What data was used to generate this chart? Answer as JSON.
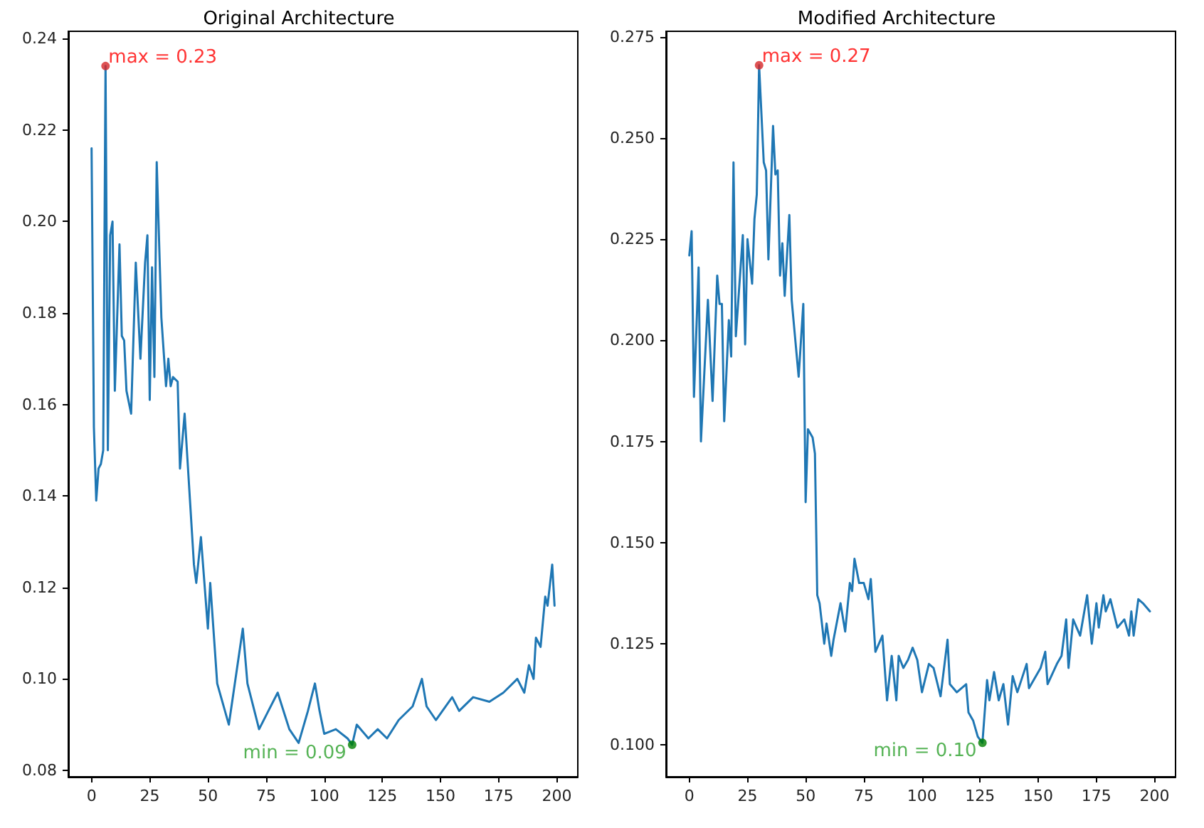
{
  "chart_data": [
    {
      "type": "line",
      "title": "Original Architecture",
      "grid": false,
      "marker": "none",
      "line_style": "solid",
      "xlim": [
        -10,
        209
      ],
      "xticks": [
        0,
        25,
        50,
        75,
        100,
        125,
        150,
        175,
        200
      ],
      "ylim": [
        0.0786,
        0.2416
      ],
      "yticks": [
        {
          "value": 0.08,
          "label": "0.08"
        },
        {
          "value": 0.1,
          "label": "0.10"
        },
        {
          "value": 0.12,
          "label": "0.12"
        },
        {
          "value": 0.14,
          "label": "0.14"
        },
        {
          "value": 0.16,
          "label": "0.16"
        },
        {
          "value": 0.18,
          "label": "0.18"
        },
        {
          "value": 0.2,
          "label": "0.20"
        },
        {
          "value": 0.22,
          "label": "0.22"
        },
        {
          "value": 0.24,
          "label": "0.24"
        }
      ],
      "annotations": [
        {
          "text": "max = 0.23",
          "x": 6,
          "y": 0.234
        },
        {
          "text": "min = 0.09",
          "x": 112,
          "y": 0.0856
        }
      ],
      "series": [
        {
          "color": "#1f77b4",
          "x": [
            0,
            1,
            2,
            3,
            4,
            5,
            6,
            7,
            8,
            9,
            10,
            12,
            13,
            14,
            15,
            17,
            19,
            21,
            23,
            24,
            25,
            26,
            27,
            28,
            30,
            32,
            33,
            34,
            35,
            37,
            38,
            40,
            44,
            45,
            47,
            50,
            51,
            54,
            59,
            61,
            65,
            67,
            72,
            76,
            80,
            85,
            89,
            93,
            96,
            98,
            100,
            105,
            110,
            112,
            114,
            119,
            123,
            127,
            132,
            138,
            142,
            144,
            148,
            155,
            158,
            164,
            171,
            177,
            183,
            186,
            188,
            190,
            191,
            193,
            195,
            196,
            198,
            199
          ],
          "values": [
            0.216,
            0.155,
            0.139,
            0.146,
            0.147,
            0.15,
            0.234,
            0.15,
            0.197,
            0.2,
            0.163,
            0.195,
            0.175,
            0.174,
            0.163,
            0.158,
            0.191,
            0.17,
            0.191,
            0.197,
            0.161,
            0.19,
            0.166,
            0.213,
            0.179,
            0.164,
            0.17,
            0.164,
            0.166,
            0.165,
            0.146,
            0.158,
            0.125,
            0.121,
            0.131,
            0.111,
            0.121,
            0.099,
            0.09,
            0.097,
            0.111,
            0.099,
            0.089,
            0.093,
            0.097,
            0.089,
            0.086,
            0.093,
            0.099,
            0.093,
            0.088,
            0.089,
            0.087,
            0.0856,
            0.09,
            0.087,
            0.089,
            0.087,
            0.091,
            0.094,
            0.1,
            0.094,
            0.091,
            0.096,
            0.093,
            0.096,
            0.095,
            0.097,
            0.1,
            0.097,
            0.103,
            0.1,
            0.109,
            0.107,
            0.118,
            0.116,
            0.125,
            0.116
          ]
        }
      ]
    },
    {
      "type": "line",
      "title": "Modified Architecture",
      "grid": false,
      "marker": "none",
      "line_style": "solid",
      "xlim": [
        -10,
        209
      ],
      "xticks": [
        0,
        25,
        50,
        75,
        100,
        125,
        150,
        175,
        200
      ],
      "ylim": [
        0.0921,
        0.2764
      ],
      "yticks": [
        {
          "value": 0.1,
          "label": "0.100"
        },
        {
          "value": 0.125,
          "label": "0.125"
        },
        {
          "value": 0.15,
          "label": "0.150"
        },
        {
          "value": 0.175,
          "label": "0.175"
        },
        {
          "value": 0.2,
          "label": "0.200"
        },
        {
          "value": 0.225,
          "label": "0.225"
        },
        {
          "value": 0.25,
          "label": "0.250"
        },
        {
          "value": 0.275,
          "label": "0.275"
        }
      ],
      "annotations": [
        {
          "text": "max = 0.27",
          "x": 30,
          "y": 0.268
        },
        {
          "text": "min = 0.10",
          "x": 126,
          "y": 0.1005
        }
      ],
      "series": [
        {
          "color": "#1f77b4",
          "x": [
            0,
            1,
            2,
            4,
            5,
            8,
            10,
            12,
            13,
            14,
            15,
            17,
            18,
            19,
            20,
            23,
            24,
            25,
            27,
            28,
            29,
            30,
            32,
            33,
            34,
            36,
            37,
            38,
            39,
            40,
            41,
            43,
            44,
            47,
            49,
            50,
            51,
            53,
            54,
            55,
            56,
            58,
            59,
            61,
            62,
            65,
            67,
            69,
            70,
            71,
            73,
            75,
            77,
            78,
            80,
            83,
            85,
            87,
            89,
            90,
            92,
            94,
            96,
            98,
            100,
            103,
            105,
            108,
            111,
            112,
            115,
            119,
            120,
            122,
            124,
            126,
            128,
            129,
            131,
            133,
            135,
            137,
            139,
            141,
            145,
            146,
            151,
            153,
            154,
            158,
            160,
            162,
            163,
            165,
            168,
            171,
            173,
            175,
            176,
            178,
            179,
            181,
            184,
            187,
            189,
            190,
            191,
            193,
            195,
            198
          ],
          "values": [
            0.221,
            0.227,
            0.186,
            0.218,
            0.175,
            0.21,
            0.185,
            0.216,
            0.209,
            0.209,
            0.18,
            0.205,
            0.196,
            0.244,
            0.201,
            0.226,
            0.199,
            0.225,
            0.214,
            0.23,
            0.236,
            0.268,
            0.244,
            0.242,
            0.22,
            0.253,
            0.241,
            0.242,
            0.216,
            0.224,
            0.211,
            0.231,
            0.21,
            0.191,
            0.209,
            0.16,
            0.178,
            0.176,
            0.172,
            0.137,
            0.135,
            0.125,
            0.13,
            0.122,
            0.126,
            0.135,
            0.128,
            0.14,
            0.138,
            0.146,
            0.14,
            0.14,
            0.136,
            0.141,
            0.123,
            0.127,
            0.111,
            0.122,
            0.111,
            0.122,
            0.119,
            0.121,
            0.124,
            0.121,
            0.113,
            0.12,
            0.119,
            0.112,
            0.126,
            0.115,
            0.113,
            0.115,
            0.108,
            0.106,
            0.102,
            0.1005,
            0.116,
            0.111,
            0.118,
            0.111,
            0.115,
            0.105,
            0.117,
            0.113,
            0.12,
            0.114,
            0.119,
            0.123,
            0.115,
            0.12,
            0.122,
            0.131,
            0.119,
            0.131,
            0.127,
            0.137,
            0.125,
            0.135,
            0.129,
            0.137,
            0.133,
            0.136,
            0.129,
            0.131,
            0.127,
            0.133,
            0.127,
            0.136,
            0.135,
            0.133
          ]
        }
      ]
    }
  ]
}
